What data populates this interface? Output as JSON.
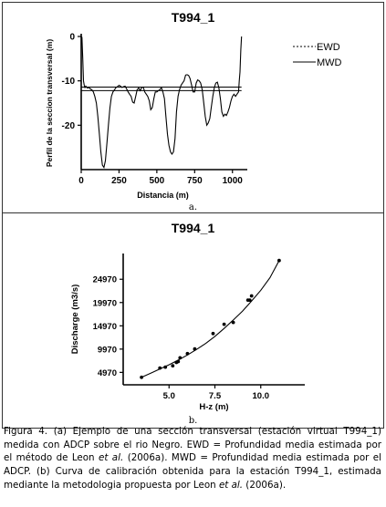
{
  "panel_a": {
    "label": "a."
  },
  "panel_b": {
    "label": "b."
  },
  "chart_data": [
    {
      "type": "line",
      "title": "T994_1",
      "xlabel": "Distancia (m)",
      "ylabel": "Perfil de la seccion transversal (m)",
      "xlim": [
        0,
        1080
      ],
      "ylim": [
        -30,
        0
      ],
      "xticks": [
        0,
        250,
        500,
        750,
        1000
      ],
      "yticks": [
        0,
        -10,
        -20
      ],
      "legend_position": "right",
      "series": [
        {
          "name": "EWD",
          "style": "solid",
          "constant": -11.4
        },
        {
          "name": "MWD",
          "style": "solid",
          "constant": -12.2
        }
      ],
      "profile": {
        "x": [
          0,
          5,
          10,
          15,
          20,
          25,
          30,
          40,
          50,
          60,
          70,
          80,
          90,
          100,
          110,
          120,
          130,
          140,
          150,
          160,
          170,
          180,
          190,
          200,
          210,
          220,
          230,
          240,
          250,
          260,
          270,
          280,
          290,
          300,
          310,
          320,
          330,
          340,
          350,
          360,
          370,
          380,
          390,
          400,
          410,
          420,
          430,
          440,
          450,
          460,
          470,
          480,
          490,
          500,
          510,
          520,
          530,
          540,
          550,
          560,
          570,
          580,
          590,
          600,
          610,
          620,
          630,
          640,
          650,
          660,
          670,
          680,
          690,
          700,
          710,
          720,
          730,
          740,
          750,
          760,
          770,
          780,
          790,
          800,
          810,
          820,
          830,
          840,
          850,
          860,
          870,
          880,
          890,
          900,
          910,
          920,
          930,
          940,
          950,
          960,
          970,
          980,
          990,
          1000,
          1010,
          1020,
          1030,
          1040,
          1045,
          1050,
          1055,
          1060
        ],
        "y": [
          0,
          -0.2,
          -5,
          -10,
          -11,
          -11.5,
          -11.2,
          -11.6,
          -11.5,
          -11.8,
          -12,
          -12.5,
          -13.5,
          -15,
          -18,
          -22,
          -26,
          -29,
          -29.5,
          -28,
          -24,
          -20,
          -16,
          -13.5,
          -12.5,
          -12,
          -11.5,
          -11.3,
          -11,
          -11.2,
          -11.5,
          -11.3,
          -11.2,
          -11.8,
          -12.5,
          -13,
          -13.5,
          -14.8,
          -15,
          -13.5,
          -12,
          -11.6,
          -12.2,
          -11.5,
          -11.4,
          -12.5,
          -13,
          -13.5,
          -14.5,
          -16.5,
          -16,
          -14,
          -12.5,
          -12.5,
          -12.2,
          -12,
          -11.5,
          -12.5,
          -14,
          -18,
          -22,
          -24.5,
          -26,
          -26.5,
          -26,
          -23,
          -17,
          -13.5,
          -12,
          -11,
          -10.5,
          -10,
          -8.7,
          -8.6,
          -8.8,
          -9.5,
          -11,
          -12.5,
          -12.5,
          -10.5,
          -9.8,
          -10,
          -10.5,
          -12,
          -15,
          -18,
          -20,
          -19.5,
          -18.5,
          -16,
          -13.5,
          -11.5,
          -10.5,
          -10.3,
          -11.5,
          -14,
          -17,
          -18,
          -17.5,
          -17.8,
          -17,
          -16,
          -14.5,
          -13.5,
          -13,
          -13.5,
          -13,
          -12.5,
          -10,
          -8,
          -3,
          0
        ]
      }
    },
    {
      "type": "scatter",
      "title": "T994_1",
      "xlabel": "H-z (m)",
      "ylabel": "Discharge (m3/s)",
      "xlim": [
        2.5,
        12.4
      ],
      "ylim": [
        2300,
        30500
      ],
      "xticks": [
        5.0,
        7.5,
        10.0
      ],
      "xtick_labels": [
        "5.0",
        "7.5",
        "10.0"
      ],
      "yticks": [
        4970,
        9970,
        14970,
        19970,
        24970
      ],
      "ytick_labels": [
        "4970",
        "9970",
        "14970",
        "19970",
        "24970"
      ],
      "points": {
        "x": [
          3.5,
          4.5,
          4.8,
          5.2,
          5.4,
          5.5,
          5.6,
          6.0,
          6.4,
          7.4,
          8.0,
          8.5,
          9.3,
          9.5,
          9.4,
          11.0
        ],
        "y": [
          3900,
          5900,
          6100,
          6400,
          7100,
          7300,
          8100,
          9000,
          10000,
          13300,
          15300,
          15700,
          20500,
          21400,
          20500,
          29000
        ]
      },
      "fit_curve": {
        "x": [
          3.5,
          4.0,
          4.5,
          5.0,
          5.5,
          6.0,
          6.5,
          7.0,
          7.5,
          8.0,
          8.5,
          9.0,
          9.5,
          10.0,
          10.5,
          11.0
        ],
        "y": [
          3900,
          4800,
          5700,
          6600,
          7600,
          8700,
          9900,
          11200,
          12700,
          14400,
          16200,
          18100,
          20300,
          22600,
          25300,
          29000
        ]
      }
    }
  ],
  "caption": {
    "p1": "Figura 4. (a) Ejemplo de una sección transversal (estación virtual T994_1) medida con ADCP sobre el rio Negro. EWD = Profundidad media estimada por el método de Leon ",
    "p1_italic": "et al.",
    "p2": " (2006a). MWD = Profundidad media estimada por el ADCP. (b) Curva de calibración obtenida para la estación T994_1, estimada mediante la metodologia propuesta por Leon ",
    "p2_italic": "et al.",
    "p3": " (2006a)."
  }
}
